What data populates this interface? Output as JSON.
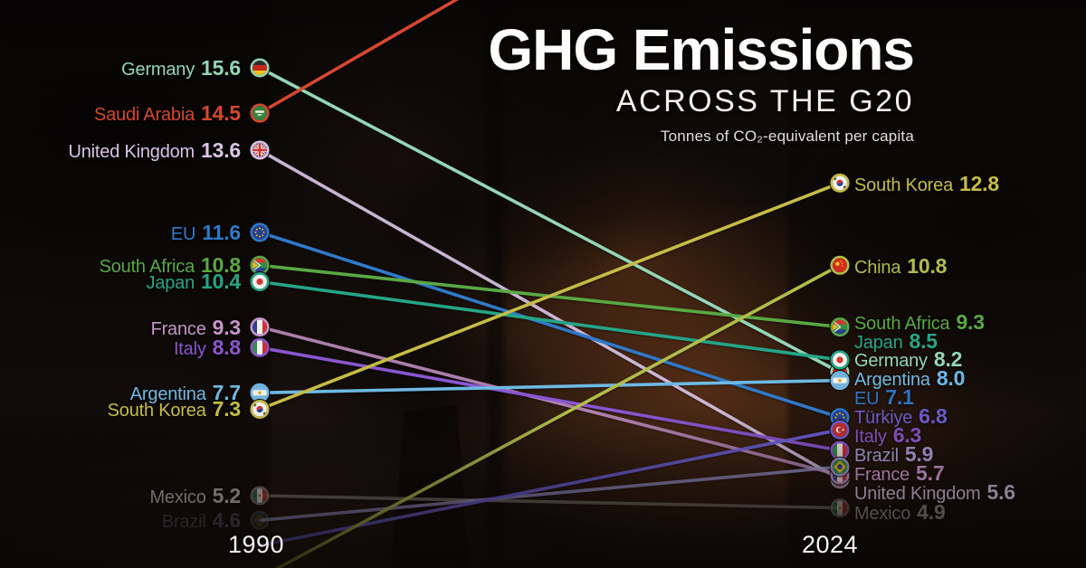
{
  "title": {
    "main": "GHG Emissions",
    "sub": "ACROSS THE G20",
    "unit": "Tonnes of CO₂-equivalent per capita"
  },
  "axis_labels": {
    "start": "1990",
    "end": "2024"
  },
  "chart_data": {
    "type": "line",
    "subtype": "slope-chart",
    "x": [
      "1990",
      "2024"
    ],
    "unit": "tonnes of CO2-equivalent per capita",
    "value_axis_visible_range": [
      4.4,
      15.6
    ],
    "legend_position": "inline-labels",
    "grid": false,
    "series": [
      {
        "id": "germany",
        "name": "Germany",
        "flag": "de",
        "color": "#94d6b7",
        "v1990": 15.6,
        "v2024": 8.2
      },
      {
        "id": "saudi-arabia",
        "name": "Saudi Arabia",
        "flag": "sa",
        "color": "#d6472e",
        "v1990": 14.5,
        "v2024": null,
        "note": "2024 endpoint above visible crop"
      },
      {
        "id": "united-kingdom",
        "name": "United Kingdom",
        "flag": "gb",
        "color": "#d9c4e6",
        "v1990": 13.6,
        "v2024": 5.6
      },
      {
        "id": "eu",
        "name": "EU",
        "flag": "eu",
        "color": "#2f79c9",
        "v1990": 11.6,
        "v2024": 7.1
      },
      {
        "id": "south-africa",
        "name": "South Africa",
        "flag": "za",
        "color": "#5aa944",
        "v1990": 10.8,
        "v2024": 9.3
      },
      {
        "id": "japan",
        "name": "Japan",
        "flag": "jp",
        "color": "#25a587",
        "v1990": 10.4,
        "v2024": 8.5
      },
      {
        "id": "france",
        "name": "France",
        "flag": "fr",
        "color": "#c795cd",
        "v1990": 9.3,
        "v2024": 5.7
      },
      {
        "id": "italy",
        "name": "Italy",
        "flag": "it",
        "color": "#8a56d0",
        "v1990": 8.8,
        "v2024": 6.3
      },
      {
        "id": "argentina",
        "name": "Argentina",
        "flag": "ar",
        "color": "#6fb9e4",
        "v1990": 7.7,
        "v2024": 8.0
      },
      {
        "id": "south-korea",
        "name": "South Korea",
        "flag": "kr",
        "color": "#c5bd45",
        "v1990": 7.3,
        "v2024": 12.8
      },
      {
        "id": "mexico",
        "name": "Mexico",
        "flag": "mx",
        "color": "#8d8781",
        "v1990": 5.2,
        "v2024": 4.9
      },
      {
        "id": "brazil",
        "name": "Brazil",
        "flag": "br",
        "color": "#a69cda",
        "v1990": 4.6,
        "v2024": 5.9,
        "faded_1990": true
      },
      {
        "id": "turkiye",
        "name": "Türkiye",
        "flag": "tr",
        "color": "#7061d8",
        "v1990": null,
        "v2024": 6.8,
        "note": "1990 endpoint below visible crop"
      },
      {
        "id": "china",
        "name": "China",
        "flag": "cn",
        "color": "#b1bd4a",
        "v1990": null,
        "v2024": 10.8,
        "note": "1990 endpoint below visible crop"
      }
    ]
  }
}
